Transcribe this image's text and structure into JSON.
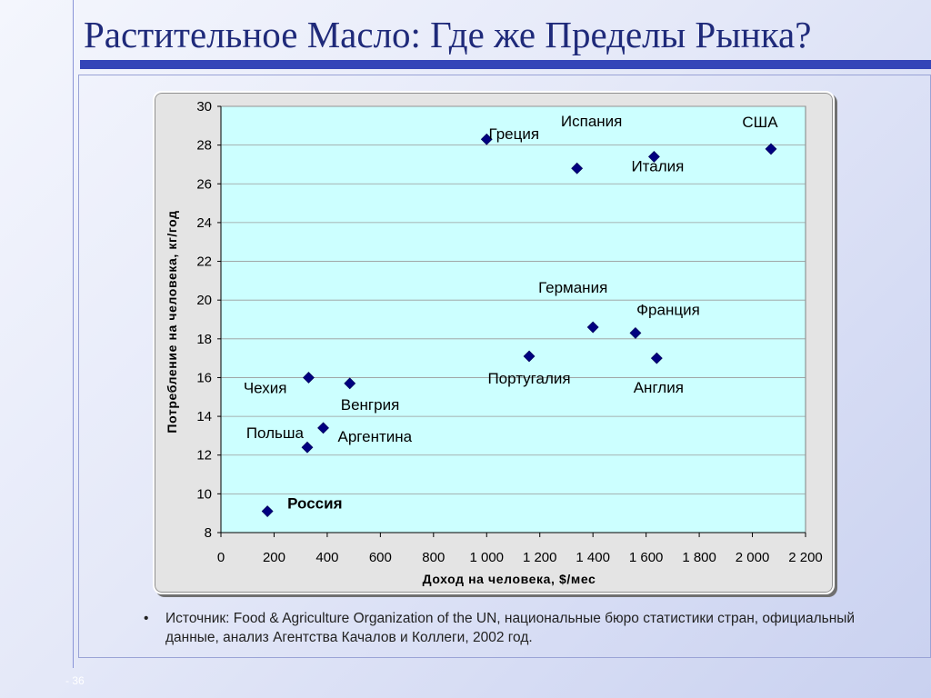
{
  "slide": {
    "title": "Растительное Масло: Где же Пределы Рынка?",
    "source_note": "Источник: Food & Agriculture Organization of the UN, национальные бюро статистики стран, официальный данные, анализ Агентства Качалов и Коллеги, 2002 год.",
    "bullet": "•",
    "page_number": "- 36"
  },
  "colors": {
    "title": "#1f2a7a",
    "title_bar": "#3445b8",
    "plot_bg": "#ccffff",
    "marker": "#000080"
  },
  "chart_data": {
    "type": "scatter",
    "xlabel": "Доход на человека, $/мес",
    "ylabel": "Потребление на человека, кг/год",
    "xlim": [
      0,
      2200
    ],
    "ylim": [
      8,
      30
    ],
    "xticks": [
      0,
      200,
      400,
      600,
      800,
      1000,
      1200,
      1400,
      1600,
      1800,
      2000,
      2200
    ],
    "xtick_labels": [
      "0",
      "200",
      "400",
      "600",
      "800",
      "1 000",
      "1 200",
      "1 400",
      "1 600",
      "1 800",
      "2 000",
      "2 200"
    ],
    "yticks": [
      8,
      10,
      12,
      14,
      16,
      18,
      20,
      22,
      24,
      26,
      28,
      30
    ],
    "ytick_labels": [
      "8",
      "10",
      "12",
      "14",
      "16",
      "18",
      "20",
      "22",
      "24",
      "26",
      "28",
      "30"
    ],
    "grid": "horizontal",
    "points": [
      {
        "label": "Россия",
        "x": 175,
        "y": 9.1,
        "bold": true
      },
      {
        "label": "Чехия",
        "x": 330,
        "y": 16.0
      },
      {
        "label": "Польша",
        "x": 325,
        "y": 12.4
      },
      {
        "label": "Аргентина",
        "x": 385,
        "y": 13.4
      },
      {
        "label": "Венгрия",
        "x": 485,
        "y": 15.7
      },
      {
        "label": "Греция",
        "x": 1000,
        "y": 28.3
      },
      {
        "label": "Испания",
        "x": 1340,
        "y": 26.8
      },
      {
        "label": "Италия",
        "x": 1630,
        "y": 27.4
      },
      {
        "label": "США",
        "x": 2070,
        "y": 27.8
      },
      {
        "label": "Португалия",
        "x": 1160,
        "y": 17.1
      },
      {
        "label": "Германия",
        "x": 1400,
        "y": 18.6
      },
      {
        "label": "Франция",
        "x": 1560,
        "y": 18.3
      },
      {
        "label": "Англия",
        "x": 1640,
        "y": 17.0
      }
    ]
  }
}
